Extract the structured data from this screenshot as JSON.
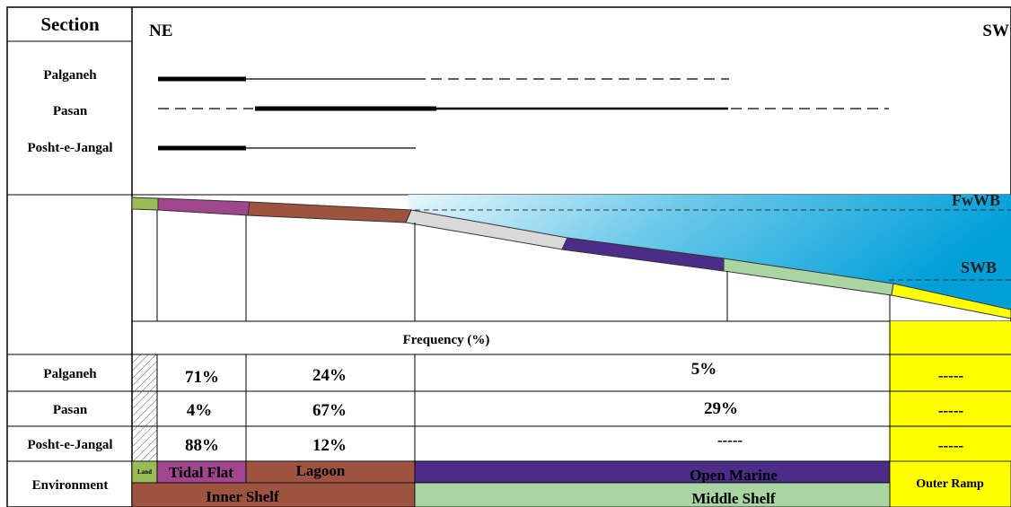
{
  "header": {
    "section_label": "Section",
    "ne_label": "NE",
    "sw_label": "SW"
  },
  "sections": [
    {
      "name": "Palganeh",
      "frequencies": [
        "71%",
        "24%",
        "5%",
        "-----"
      ]
    },
    {
      "name": "Pasan",
      "frequencies": [
        "4%",
        "67%",
        "29%",
        "-----"
      ]
    },
    {
      "name": "Posht-e-Jangal",
      "frequencies": [
        "88%",
        "12%",
        "-----",
        "-----"
      ]
    }
  ],
  "profile": {
    "fwwb_label": "FwWB",
    "swb_label": "SWB"
  },
  "frequency_header": "Frequency (%)",
  "environment": {
    "label": "Environment",
    "subenvironments": [
      {
        "name": "Land",
        "color": "#9bbb59"
      },
      {
        "name": "Tidal Flat",
        "color": "#a0468e"
      },
      {
        "name": "Lagoon",
        "color": "#9e5341"
      },
      {
        "name": "Open Marine",
        "color": "#4b2c86"
      },
      {
        "name": "Outer Ramp",
        "color": "#ffff00"
      }
    ],
    "shelves": [
      {
        "name": "Inner Shelf",
        "color": "#9e5341"
      },
      {
        "name": "Middle Shelf",
        "color": "#a8d5a2"
      }
    ]
  },
  "colors": {
    "sea_top": "#cdeef8",
    "sea_bottom": "#009fd9",
    "slope_grey": "#d9d9d9"
  }
}
